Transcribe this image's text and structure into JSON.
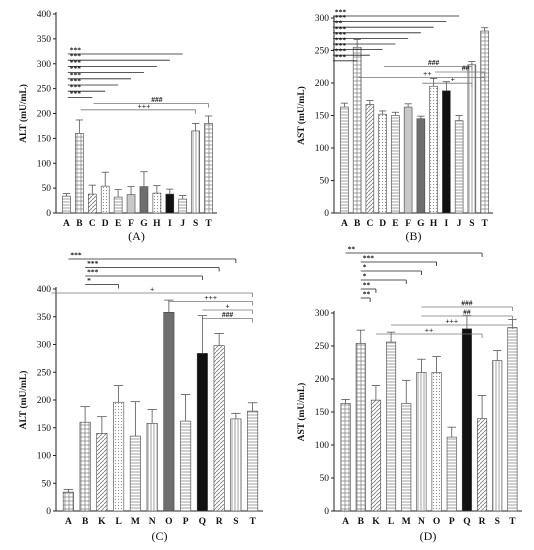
{
  "chart_data": [
    {
      "type": "bar",
      "panel_label": "(A)",
      "ylabel": "ALT (mU/mL)",
      "ylim": [
        0,
        400
      ],
      "yticks": [
        0,
        50,
        100,
        150,
        200,
        250,
        300,
        350,
        400
      ],
      "categories": [
        "A",
        "B",
        "C",
        "D",
        "E",
        "F",
        "G",
        "H",
        "I",
        "J",
        "S",
        "T"
      ],
      "values": [
        34,
        160,
        38,
        54,
        32,
        37,
        53,
        40,
        38,
        28,
        165,
        180
      ],
      "errors": [
        5,
        27,
        18,
        28,
        15,
        16,
        30,
        15,
        10,
        7,
        15,
        15
      ],
      "patterns": [
        "hlines",
        "grid",
        "diag",
        "dots",
        "hlines",
        "solidlight",
        "solidgrey",
        "dots",
        "solidblack",
        "hlines",
        "vlines",
        "grid"
      ],
      "annotations": [
        {
          "label": "***",
          "from": "B",
          "to": "J"
        },
        {
          "label": "***",
          "from": "B",
          "to": "I"
        },
        {
          "label": "***",
          "from": "B",
          "to": "H"
        },
        {
          "label": "***",
          "from": "B",
          "to": "G"
        },
        {
          "label": "***",
          "from": "B",
          "to": "F"
        },
        {
          "label": "***",
          "from": "B",
          "to": "E"
        },
        {
          "label": "***",
          "from": "B",
          "to": "D"
        },
        {
          "label": "***",
          "from": "B",
          "to": "C"
        },
        {
          "label": "###",
          "from": "D",
          "to": "T"
        },
        {
          "label": "+++",
          "from": "C",
          "to": "S"
        }
      ]
    },
    {
      "type": "bar",
      "panel_label": "(B)",
      "ylabel": "AST (mU/mL)",
      "ylim": [
        0,
        300
      ],
      "yticks": [
        0,
        50,
        100,
        150,
        200,
        250,
        300
      ],
      "categories": [
        "A",
        "B",
        "C",
        "D",
        "E",
        "F",
        "G",
        "H",
        "I",
        "J",
        "S",
        "T"
      ],
      "values": [
        163,
        255,
        167,
        152,
        150,
        163,
        145,
        195,
        188,
        142,
        228,
        280
      ],
      "errors": [
        6,
        12,
        6,
        5,
        5,
        5,
        4,
        12,
        14,
        8,
        5,
        5
      ],
      "patterns": [
        "hlines",
        "grid",
        "diag",
        "dots",
        "hlines",
        "solidlight",
        "solidgrey",
        "dots",
        "solidblack",
        "hlines",
        "vlines",
        "grid"
      ],
      "annotations": [
        {
          "label": "***",
          "from": "A",
          "to": "J"
        },
        {
          "label": "***",
          "from": "A",
          "to": "I"
        },
        {
          "label": "**",
          "from": "A",
          "to": "H"
        },
        {
          "label": "***",
          "from": "A",
          "to": "G"
        },
        {
          "label": "***",
          "from": "A",
          "to": "F"
        },
        {
          "label": "***",
          "from": "A",
          "to": "E"
        },
        {
          "label": "***",
          "from": "A",
          "to": "D"
        },
        {
          "label": "***",
          "from": "A",
          "to": "C"
        },
        {
          "label": "***",
          "from": "A",
          "to": "B"
        },
        {
          "label": "###",
          "from": "E",
          "to": "S"
        },
        {
          "label": "##",
          "from": "I",
          "to": "T"
        },
        {
          "label": "++",
          "from": "C",
          "to": "T"
        },
        {
          "label": "+",
          "from": "H",
          "to": "S"
        }
      ]
    },
    {
      "type": "bar",
      "panel_label": "(C)",
      "ylabel": "ALT (mU/mL)",
      "ylim": [
        0,
        400
      ],
      "yticks": [
        0,
        50,
        100,
        150,
        200,
        250,
        300,
        350,
        400
      ],
      "categories": [
        "A",
        "B",
        "K",
        "L",
        "M",
        "N",
        "O",
        "P",
        "Q",
        "R",
        "S",
        "T"
      ],
      "values": [
        34,
        160,
        140,
        196,
        135,
        158,
        358,
        162,
        284,
        298,
        166,
        180
      ],
      "errors": [
        5,
        28,
        30,
        30,
        62,
        25,
        22,
        48,
        68,
        22,
        10,
        15
      ],
      "patterns": [
        "grid",
        "grid",
        "diag",
        "dots",
        "hlines",
        "vlines",
        "solidgrey",
        "hlines",
        "solidblack",
        "diag",
        "vlines",
        "hlines"
      ],
      "annotations": [
        {
          "label": "***",
          "from": "A",
          "to": "S"
        },
        {
          "label": "***",
          "from": "B",
          "to": "R"
        },
        {
          "label": "***",
          "from": "B",
          "to": "Q"
        },
        {
          "label": "*",
          "from": "B",
          "to": "L"
        },
        {
          "label": "+",
          "from": "D",
          "to": "T"
        },
        {
          "label": "+++",
          "from": "O",
          "to": "T"
        },
        {
          "label": "+",
          "from": "Q",
          "to": "T"
        },
        {
          "label": "###",
          "from": "Q",
          "to": "T"
        }
      ]
    },
    {
      "type": "bar",
      "panel_label": "(D)",
      "ylabel": "AST (mU/mL)",
      "ylim": [
        0,
        300
      ],
      "yticks": [
        0,
        50,
        100,
        150,
        200,
        250,
        300
      ],
      "categories": [
        "A",
        "B",
        "K",
        "L",
        "M",
        "N",
        "O",
        "P",
        "Q",
        "R",
        "S",
        "T"
      ],
      "values": [
        163,
        254,
        168,
        256,
        163,
        210,
        210,
        112,
        276,
        140,
        228,
        278
      ],
      "errors": [
        6,
        20,
        22,
        15,
        35,
        20,
        24,
        15,
        20,
        35,
        15,
        12
      ],
      "patterns": [
        "grid",
        "grid",
        "diag",
        "hlines",
        "hlines",
        "vlines",
        "dots",
        "hlines",
        "solidblack",
        "diag",
        "vlines",
        "hlines"
      ],
      "annotations": [
        {
          "label": "**",
          "from": "A",
          "to": "R"
        },
        {
          "label": "***",
          "from": "B",
          "to": "O"
        },
        {
          "label": "*",
          "from": "B",
          "to": "N"
        },
        {
          "label": "*",
          "from": "B",
          "to": "M"
        },
        {
          "label": "**",
          "from": "B",
          "to": "K"
        },
        {
          "label": "**",
          "from": "B",
          "to": "B"
        },
        {
          "label": "###",
          "from": "N",
          "to": "T"
        },
        {
          "label": "##",
          "from": "N",
          "to": "T"
        },
        {
          "label": "+++",
          "from": "L",
          "to": "T"
        },
        {
          "label": "++",
          "from": "K",
          "to": "R"
        }
      ]
    }
  ]
}
